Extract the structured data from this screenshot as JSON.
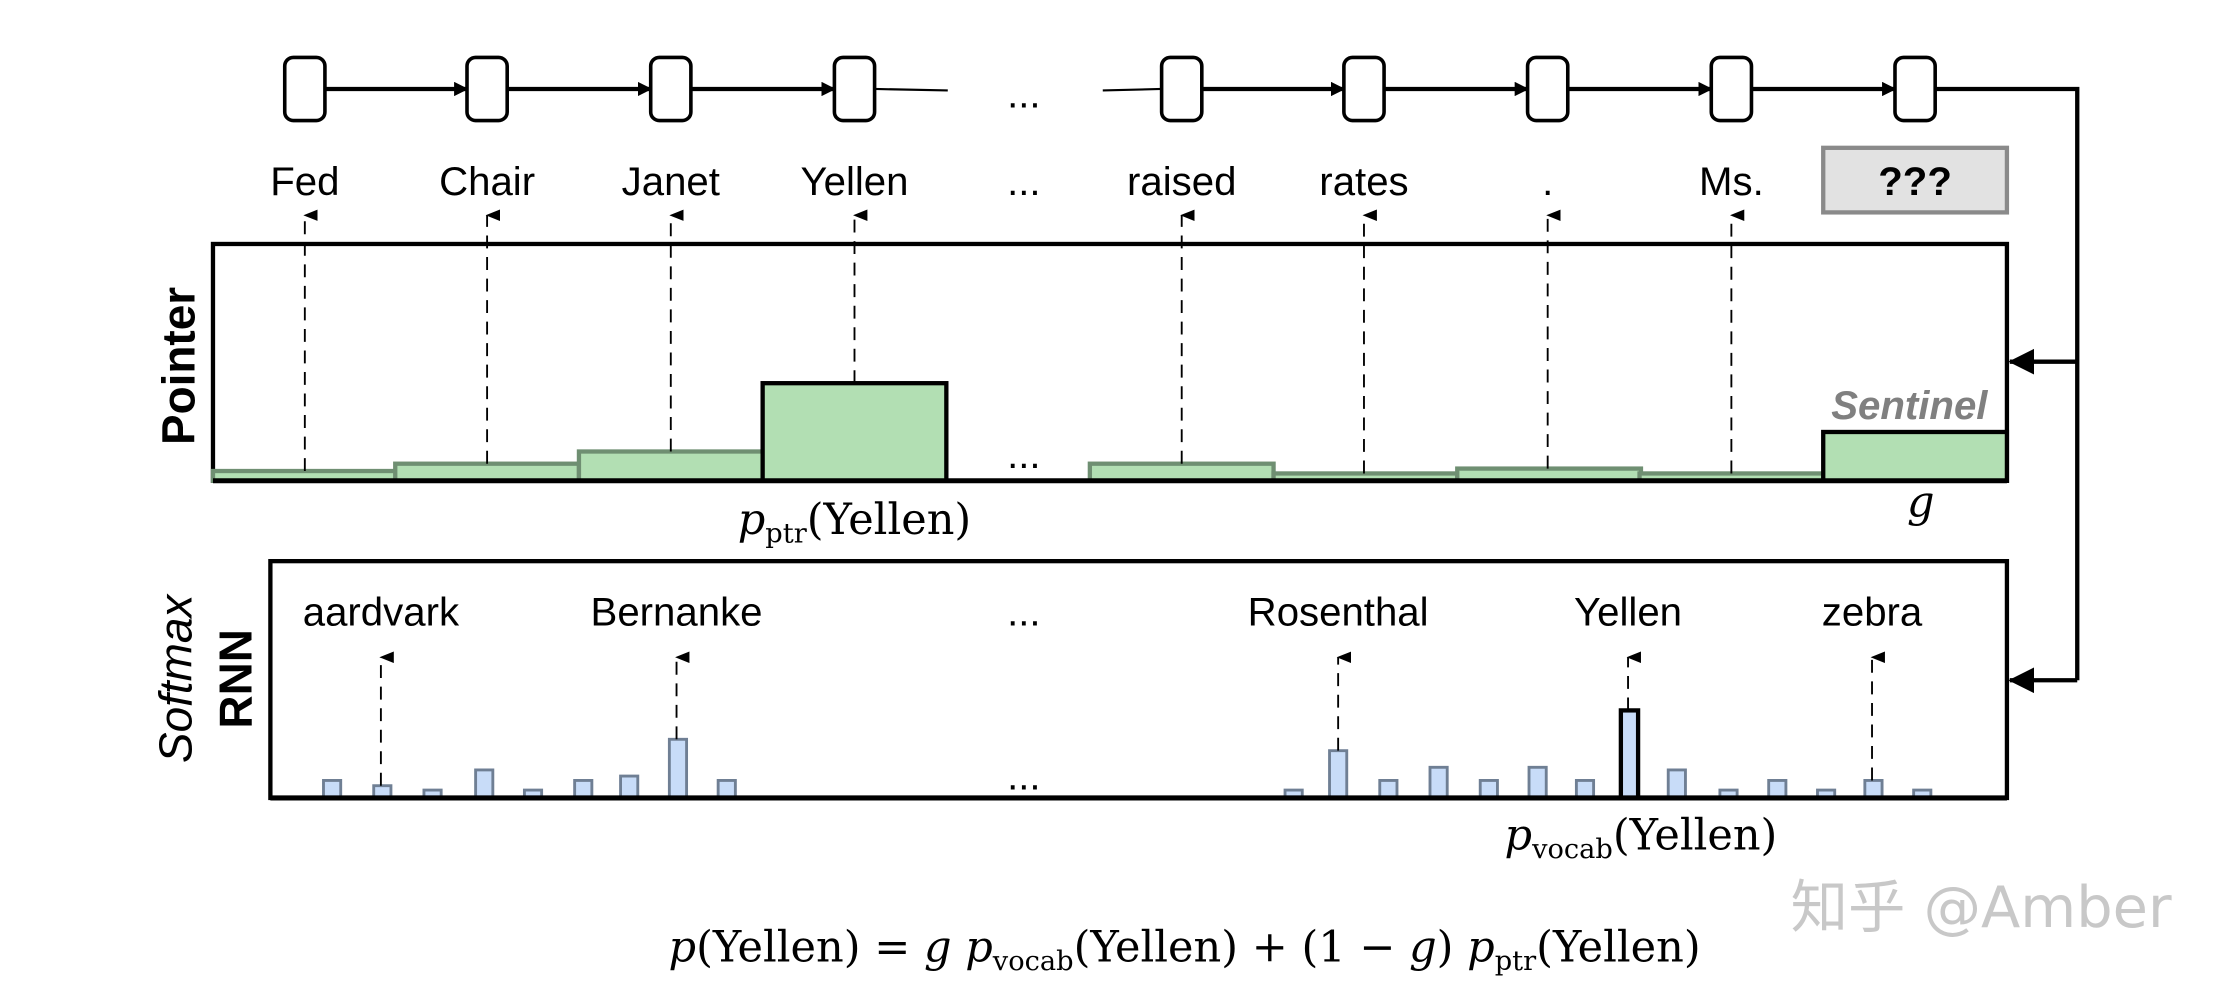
{
  "rnn": {
    "tokens": [
      "Fed",
      "Chair",
      "Janet",
      "Yellen",
      "raised",
      "rates",
      ".",
      "Ms."
    ],
    "ellipsis": "...",
    "query": "???"
  },
  "pointer": {
    "side_label": "Pointer",
    "sentinel_label": "Sentinel",
    "target_label": {
      "p": "p",
      "sub": "ptr",
      "arg": "(Yellen)"
    },
    "gate_label": "g",
    "ellipsis": "...",
    "colors": {
      "bar_fill": "#b2dfb3",
      "bar_stroke": "#6f8f72"
    }
  },
  "softmax": {
    "side_label_italic": "Softmax",
    "side_label_bold": "RNN",
    "vocab_words": [
      "aardvark",
      "Bernanke",
      "Rosenthal",
      "Yellen",
      "zebra"
    ],
    "ellipsis": "...",
    "target_label": {
      "p": "p",
      "sub": "vocab",
      "arg": "(Yellen)"
    },
    "colors": {
      "bar_fill": "#c8dcf8",
      "bar_stroke": "#6f7f94"
    }
  },
  "formula": {
    "lhs_p": "p",
    "lhs_arg": "(Yellen)",
    "eq": " = ",
    "g1": "g ",
    "p1": "p",
    "sub1": "vocab",
    "arg1": "(Yellen)",
    "plus": " + (1 − ",
    "g2": "g",
    "close": ") ",
    "p2": "p",
    "sub2": "ptr",
    "arg2": "(Yellen)"
  },
  "watermark": "知乎 @Amber",
  "chart_data": {
    "type": "bar",
    "pointer_distribution": {
      "categories": [
        "Fed",
        "Chair",
        "Janet",
        "Yellen",
        "raised",
        "rates",
        ".",
        "Ms.",
        "Sentinel"
      ],
      "values": [
        0.04,
        0.07,
        0.12,
        0.4,
        0.07,
        0.03,
        0.05,
        0.03,
        0.2
      ],
      "highlighted": [
        "Yellen",
        "Sentinel"
      ]
    },
    "vocab_distribution": {
      "left_values": [
        0.2,
        0.14,
        0.09,
        0.32,
        0.09,
        0.2,
        0.25,
        0.67,
        0.2
      ],
      "right_values": [
        0.09,
        0.54,
        0.2,
        0.35,
        0.2,
        0.35,
        0.2,
        1.0,
        0.32,
        0.09,
        0.2,
        0.09,
        0.2,
        0.09
      ],
      "labeled_bars": {
        "aardvark": 0.14,
        "Bernanke": 0.67,
        "Rosenthal": 0.54,
        "Yellen": 1.0,
        "zebra": 0.2
      },
      "highlighted": [
        "Yellen"
      ]
    }
  }
}
